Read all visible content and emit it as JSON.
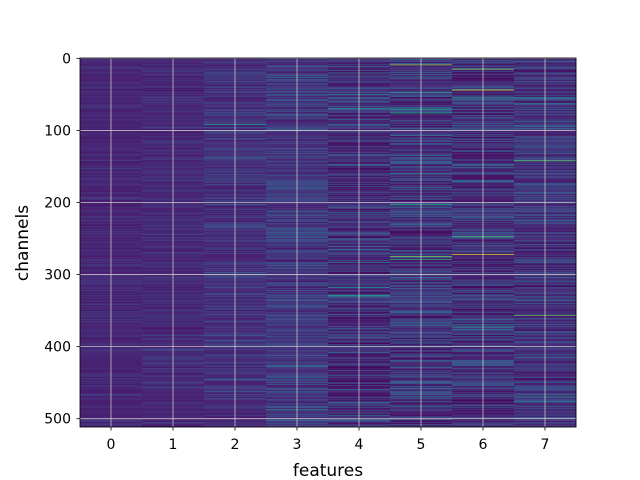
{
  "chart_data": {
    "type": "heatmap",
    "title": "",
    "xlabel": "features",
    "ylabel": "channels",
    "x_ticks": [
      "0",
      "1",
      "2",
      "3",
      "4",
      "5",
      "6",
      "7"
    ],
    "y_ticks": [
      "0",
      "100",
      "200",
      "300",
      "400",
      "500"
    ],
    "y_tick_values": [
      0,
      100,
      200,
      300,
      400,
      500
    ],
    "n_features": 8,
    "n_channels": 512,
    "xlim": [
      -0.5,
      7.5
    ],
    "ylim": [
      511.5,
      -0.5
    ],
    "grid": true,
    "colormap": "viridis",
    "column_base_level": [
      0.13,
      0.14,
      0.16,
      0.18,
      0.15,
      0.17,
      0.16,
      0.17
    ],
    "column_variability": [
      0.04,
      0.05,
      0.07,
      0.09,
      0.13,
      0.14,
      0.14,
      0.12
    ],
    "highlights": [
      {
        "feature": 5,
        "channel": 9,
        "value": 0.85
      },
      {
        "feature": 6,
        "channel": 15,
        "value": 0.8
      },
      {
        "feature": 6,
        "channel": 44,
        "value": 0.95
      },
      {
        "feature": 7,
        "channel": 142,
        "value": 0.75
      },
      {
        "feature": 5,
        "channel": 203,
        "value": 0.6
      },
      {
        "feature": 6,
        "channel": 247,
        "value": 0.7
      },
      {
        "feature": 6,
        "channel": 272,
        "value": 0.95
      },
      {
        "feature": 5,
        "channel": 275,
        "value": 0.8
      },
      {
        "feature": 5,
        "channel": 279,
        "value": 0.65
      },
      {
        "feature": 7,
        "channel": 357,
        "value": 0.75
      },
      {
        "feature": 4,
        "channel": 330,
        "value": 0.55
      },
      {
        "feature": 3,
        "channel": 488,
        "value": 0.55
      },
      {
        "feature": 2,
        "channel": 92,
        "value": 0.55
      },
      {
        "feature": 5,
        "channel": 47,
        "value": 0.55
      },
      {
        "feature": 4,
        "channel": 70,
        "value": 0.5
      },
      {
        "feature": 6,
        "channel": 55,
        "value": 0.55
      },
      {
        "feature": 3,
        "channel": 26,
        "value": 0.5
      },
      {
        "feature": 6,
        "channel": 373,
        "value": 0.5
      },
      {
        "feature": 7,
        "channel": 467,
        "value": 0.5
      }
    ]
  }
}
